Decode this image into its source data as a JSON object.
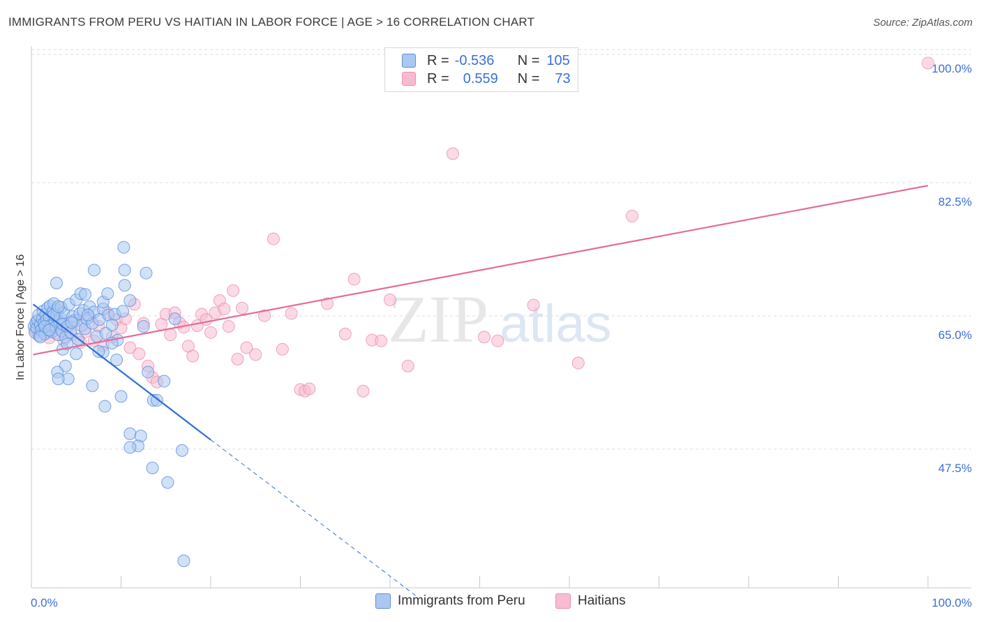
{
  "title": "IMMIGRANTS FROM PERU VS HAITIAN IN LABOR FORCE | AGE > 16 CORRELATION CHART",
  "source": "Source: ZipAtlas.com",
  "watermark": {
    "part1": "ZIP",
    "part2": "atlas"
  },
  "legend": {
    "rows": [
      {
        "r_label": "R =",
        "r_value": "-0.536",
        "n_label": "N =",
        "n_value": "105"
      },
      {
        "r_label": "R =",
        "r_value": "0.559",
        "n_label": "N =",
        "n_value": "73"
      }
    ]
  },
  "bottom_legend": {
    "peru": "Immigrants from Peru",
    "haitians": "Haitians"
  },
  "colors": {
    "peru_fill": "#aac8f2",
    "peru_stroke": "#5a8fdc",
    "peru_line": "#2f6fd6",
    "haiti_fill": "#f7bcd0",
    "haiti_stroke": "#ea8fb0",
    "haiti_line": "#e46b96",
    "axis_text": "#3a6fd8",
    "grid": "#dddddd"
  },
  "chart_data": {
    "type": "scatter",
    "title": "IMMIGRANTS FROM PERU VS HAITIAN IN LABOR FORCE | AGE > 16 CORRELATION CHART",
    "xlabel": "",
    "ylabel": "In Labor Force | Age > 16",
    "x_tick_labels": [
      "0.0%",
      "100.0%"
    ],
    "y_tick_labels": [
      "100.0%",
      "82.5%",
      "65.0%",
      "47.5%"
    ],
    "y_ticks": [
      100.0,
      82.5,
      65.0,
      47.5
    ],
    "xlim": [
      0,
      100
    ],
    "ylim": [
      32.5,
      102
    ],
    "grid": true,
    "series": [
      {
        "name": "Immigrants from Peru",
        "R": -0.536,
        "N": 105,
        "trend": {
          "x0": 0.2,
          "y0": 68.9,
          "x1": 20,
          "y1": 51.1,
          "dash_to_x": 43,
          "dash_to_y": 30.5
        },
        "points": [
          [
            0.3,
            66.0
          ],
          [
            0.4,
            65.2
          ],
          [
            0.5,
            66.5
          ],
          [
            0.6,
            65.8
          ],
          [
            0.7,
            66.8
          ],
          [
            0.8,
            67.5
          ],
          [
            0.9,
            64.8
          ],
          [
            1.0,
            66.2
          ],
          [
            1.1,
            65.5
          ],
          [
            1.2,
            67.0
          ],
          [
            1.3,
            68.0
          ],
          [
            1.4,
            66.4
          ],
          [
            1.5,
            65.0
          ],
          [
            1.6,
            67.6
          ],
          [
            1.7,
            66.9
          ],
          [
            1.8,
            68.4
          ],
          [
            1.9,
            65.6
          ],
          [
            2.0,
            67.2
          ],
          [
            2.1,
            68.7
          ],
          [
            2.2,
            66.1
          ],
          [
            2.3,
            65.3
          ],
          [
            2.4,
            67.9
          ],
          [
            2.5,
            69.0
          ],
          [
            2.6,
            66.6
          ],
          [
            2.7,
            65.9
          ],
          [
            2.8,
            67.4
          ],
          [
            2.9,
            68.2
          ],
          [
            3.0,
            64.9
          ],
          [
            3.1,
            66.7
          ],
          [
            3.2,
            67.1
          ],
          [
            3.3,
            68.5
          ],
          [
            3.4,
            65.4
          ],
          [
            3.5,
            66.3
          ],
          [
            3.6,
            67.8
          ],
          [
            3.8,
            64.6
          ],
          [
            4.0,
            66.0
          ],
          [
            4.2,
            68.9
          ],
          [
            4.4,
            65.2
          ],
          [
            4.6,
            67.3
          ],
          [
            4.8,
            66.8
          ],
          [
            5.0,
            69.5
          ],
          [
            5.2,
            64.3
          ],
          [
            5.4,
            67.7
          ],
          [
            5.6,
            66.1
          ],
          [
            5.8,
            68.1
          ],
          [
            6.0,
            65.7
          ],
          [
            6.2,
            67.0
          ],
          [
            6.5,
            68.6
          ],
          [
            6.8,
            66.4
          ],
          [
            7.0,
            67.9
          ],
          [
            7.3,
            64.7
          ],
          [
            7.6,
            66.9
          ],
          [
            8.0,
            68.3
          ],
          [
            8.3,
            65.1
          ],
          [
            8.6,
            67.5
          ],
          [
            9.0,
            66.2
          ],
          [
            9.3,
            67.6
          ],
          [
            9.6,
            64.2
          ],
          [
            1.0,
            64.6
          ],
          [
            1.5,
            66.0
          ],
          [
            2.0,
            65.5
          ],
          [
            2.5,
            67.5
          ],
          [
            3.0,
            68.6
          ],
          [
            3.5,
            63.0
          ],
          [
            4.0,
            63.7
          ],
          [
            4.5,
            66.5
          ],
          [
            5.0,
            62.4
          ],
          [
            5.5,
            70.3
          ],
          [
            6.0,
            70.2
          ],
          [
            7.0,
            73.4
          ],
          [
            2.8,
            71.7
          ],
          [
            8.0,
            62.6
          ],
          [
            9.5,
            61.6
          ],
          [
            3.8,
            60.8
          ],
          [
            2.9,
            60.0
          ],
          [
            4.1,
            59.1
          ],
          [
            3.0,
            59.1
          ],
          [
            6.8,
            58.2
          ],
          [
            10.0,
            56.8
          ],
          [
            8.2,
            55.5
          ],
          [
            13.6,
            56.3
          ],
          [
            14.0,
            56.3
          ],
          [
            11.0,
            51.9
          ],
          [
            12.2,
            51.6
          ],
          [
            11.9,
            50.3
          ],
          [
            11.0,
            50.1
          ],
          [
            16.8,
            49.7
          ],
          [
            13.5,
            47.4
          ],
          [
            15.2,
            45.5
          ],
          [
            17.0,
            35.2
          ],
          [
            10.4,
            71.4
          ],
          [
            10.3,
            76.4
          ],
          [
            10.4,
            73.4
          ],
          [
            12.8,
            73.0
          ],
          [
            8.0,
            69.2
          ],
          [
            11.0,
            69.4
          ],
          [
            8.5,
            70.3
          ],
          [
            12.5,
            66.0
          ],
          [
            6.3,
            67.5
          ],
          [
            7.5,
            62.7
          ],
          [
            9.0,
            63.8
          ],
          [
            13.0,
            60.0
          ],
          [
            14.8,
            58.8
          ],
          [
            10.2,
            68.0
          ],
          [
            16.0,
            67.0
          ]
        ]
      },
      {
        "name": "Haitians",
        "R": 0.559,
        "N": 73,
        "trend": {
          "x0": 0.2,
          "y0": 62.3,
          "x1": 100,
          "y1": 84.5
        },
        "points": [
          [
            0.4,
            65.5
          ],
          [
            0.8,
            64.8
          ],
          [
            1.2,
            66.0
          ],
          [
            1.6,
            65.2
          ],
          [
            2.0,
            64.5
          ],
          [
            2.4,
            65.9
          ],
          [
            2.8,
            65.0
          ],
          [
            3.2,
            66.4
          ],
          [
            3.6,
            64.2
          ],
          [
            4.0,
            65.6
          ],
          [
            4.5,
            64.9
          ],
          [
            5.0,
            66.7
          ],
          [
            5.5,
            63.9
          ],
          [
            6.0,
            65.3
          ],
          [
            6.5,
            67.2
          ],
          [
            7.0,
            64.1
          ],
          [
            7.5,
            66.0
          ],
          [
            8.0,
            63.5
          ],
          [
            8.5,
            67.8
          ],
          [
            9.0,
            64.6
          ],
          [
            9.5,
            66.9
          ],
          [
            10.0,
            65.8
          ],
          [
            10.5,
            67.0
          ],
          [
            11.0,
            63.2
          ],
          [
            11.5,
            68.9
          ],
          [
            12.0,
            62.4
          ],
          [
            12.5,
            66.4
          ],
          [
            13.0,
            60.8
          ],
          [
            13.5,
            59.3
          ],
          [
            14.0,
            58.7
          ],
          [
            14.5,
            66.3
          ],
          [
            15.0,
            67.6
          ],
          [
            15.5,
            64.9
          ],
          [
            16.0,
            67.8
          ],
          [
            16.5,
            66.5
          ],
          [
            17.0,
            65.9
          ],
          [
            17.5,
            63.4
          ],
          [
            18.0,
            62.1
          ],
          [
            18.5,
            66.1
          ],
          [
            19.0,
            67.6
          ],
          [
            19.5,
            66.9
          ],
          [
            20.0,
            65.2
          ],
          [
            20.5,
            67.8
          ],
          [
            21.0,
            69.4
          ],
          [
            21.5,
            68.3
          ],
          [
            22.0,
            66.0
          ],
          [
            22.5,
            70.7
          ],
          [
            23.0,
            61.7
          ],
          [
            23.5,
            68.4
          ],
          [
            24.0,
            63.2
          ],
          [
            25.0,
            62.3
          ],
          [
            26.0,
            67.4
          ],
          [
            27.0,
            77.5
          ],
          [
            28.0,
            63.0
          ],
          [
            29.0,
            67.7
          ],
          [
            30.0,
            57.7
          ],
          [
            30.5,
            57.5
          ],
          [
            31.0,
            57.8
          ],
          [
            33.0,
            69.0
          ],
          [
            35.0,
            65.0
          ],
          [
            36.0,
            72.2
          ],
          [
            37.0,
            57.5
          ],
          [
            38.0,
            64.2
          ],
          [
            39.0,
            64.1
          ],
          [
            40.0,
            69.5
          ],
          [
            42.0,
            60.8
          ],
          [
            47.0,
            88.7
          ],
          [
            50.5,
            64.6
          ],
          [
            52.0,
            64.1
          ],
          [
            56.0,
            68.8
          ],
          [
            61.0,
            61.2
          ],
          [
            67.0,
            80.5
          ],
          [
            100.0,
            100.6
          ]
        ]
      }
    ]
  }
}
